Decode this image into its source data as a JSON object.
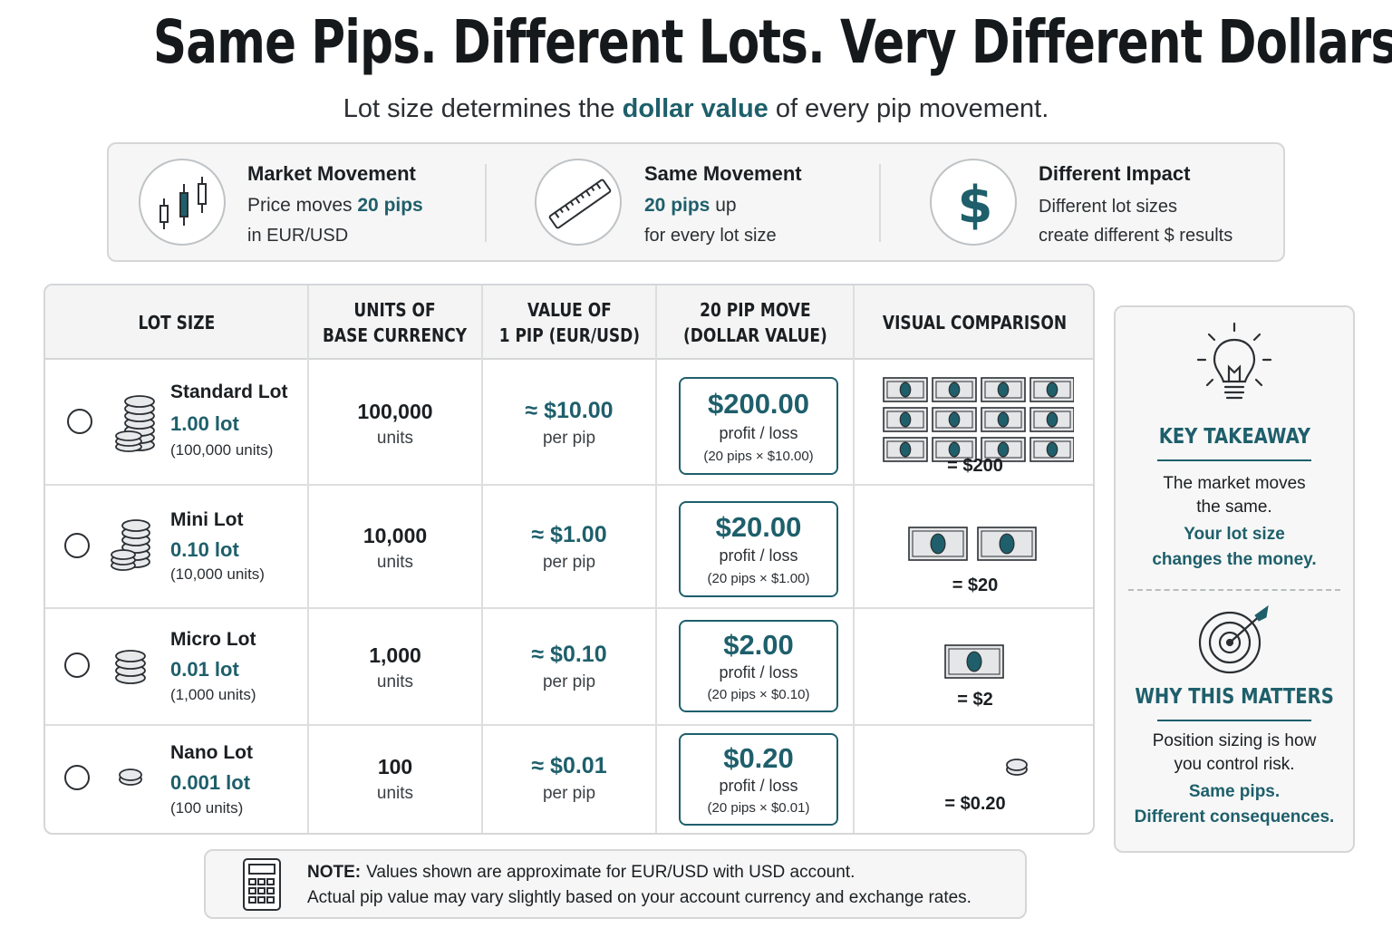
{
  "header": {
    "title": "Same Pips. Different Lots. Very Different Dollars.",
    "subtitle_pre": "Lot size determines the",
    "subtitle_highlight": "dollar value",
    "subtitle_post": "of every pip movement."
  },
  "info_cards": [
    {
      "icon": "candlestick-chart-icon",
      "title": "Market Movement",
      "line2_pre": "Price moves",
      "line2_highlight": "20 pips",
      "line3": "in EUR/USD"
    },
    {
      "icon": "ruler-icon",
      "title": "Same Movement",
      "line2_highlight": "20 pips",
      "line2_post": "up",
      "line3": "for every lot size"
    },
    {
      "icon": "dollar-sign-icon",
      "title": "Different Impact",
      "line2": "Different lot sizes",
      "line3": "create different $ results"
    }
  ],
  "table": {
    "headers": [
      "LOT SIZE",
      "UNITS OF\nBASE CURRENCY",
      "VALUE OF\n1 PIP (EUR/USD)",
      "20 PIP MOVE\n(DOLLAR VALUE)",
      "VISUAL COMPARISON"
    ],
    "rows": [
      {
        "name": "Standard Lot",
        "lot": "1.00 lot",
        "units_note": "(100,000 units)",
        "units": "100,000",
        "units_label": "units",
        "pip_value": "≈ $10.00",
        "pip_label": "per pip",
        "move_amount": "$200.00",
        "move_label": "profit / loss",
        "move_calc": "(20 pips × $10.00)",
        "visual_label": "= $200",
        "bills": 12
      },
      {
        "name": "Mini Lot",
        "lot": "0.10 lot",
        "units_note": "(10,000 units)",
        "units": "10,000",
        "units_label": "units",
        "pip_value": "≈ $1.00",
        "pip_label": "per pip",
        "move_amount": "$20.00",
        "move_label": "profit / loss",
        "move_calc": "(20 pips × $1.00)",
        "visual_label": "= $20",
        "bills": 2
      },
      {
        "name": "Micro Lot",
        "lot": "0.01 lot",
        "units_note": "(1,000 units)",
        "units": "1,000",
        "units_label": "units",
        "pip_value": "≈ $0.10",
        "pip_label": "per pip",
        "move_amount": "$2.00",
        "move_label": "profit / loss",
        "move_calc": "(20 pips × $0.10)",
        "visual_label": "= $2",
        "bills": 1
      },
      {
        "name": "Nano Lot",
        "lot": "0.001 lot",
        "units_note": "(100 units)",
        "units": "100",
        "units_label": "units",
        "pip_value": "≈ $0.01",
        "pip_label": "per pip",
        "move_amount": "$0.20",
        "move_label": "profit / loss",
        "move_calc": "(20 pips × $0.01)",
        "visual_label": "= $0.20",
        "bills": 0
      }
    ]
  },
  "takeaway": {
    "key_heading": "KEY TAKEAWAY",
    "key_line1": "The market moves",
    "key_line2": "the same.",
    "key_strong1": "Your lot size",
    "key_strong2": "changes the money.",
    "why_heading": "WHY THIS MATTERS",
    "why_line1": "Position sizing is how",
    "why_line2": "you control risk.",
    "why_strong1": "Same pips.",
    "why_strong2": "Different consequences."
  },
  "note": {
    "label": "NOTE:",
    "line1": "Values shown are approximate for EUR/USD with USD account.",
    "line2": "Actual pip value may vary slightly based on your account currency and exchange rates."
  },
  "colors": {
    "accent": "#1e5f6b",
    "text": "#1b1f22",
    "border": "#d4d6d8"
  }
}
